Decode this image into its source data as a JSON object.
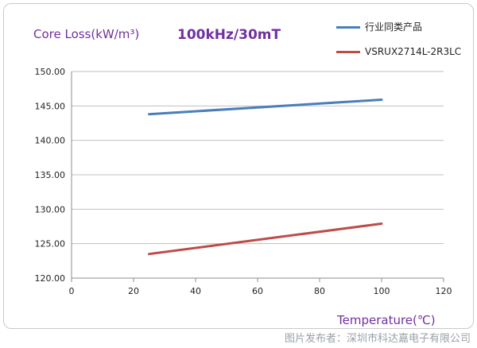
{
  "chart_data": {
    "type": "line",
    "title": "100kHz/30mT",
    "ylabel": "Core Loss(kW/m³)",
    "xlabel": "Temperature(℃)",
    "xlim": [
      0,
      120
    ],
    "ylim": [
      120,
      150
    ],
    "x_ticks": [
      "0",
      "20",
      "40",
      "60",
      "80",
      "100",
      "120"
    ],
    "y_ticks": [
      "120.00",
      "125.00",
      "130.00",
      "135.00",
      "140.00",
      "145.00",
      "150.00"
    ],
    "grid": "horizontal",
    "legend": "top-right",
    "series": [
      {
        "name": "行业同类产品",
        "color": "#4a7ebb",
        "x": [
          25,
          100
        ],
        "y": [
          143.8,
          145.9
        ]
      },
      {
        "name": "VSRUX2714L-2R3LC",
        "color": "#be4b48",
        "x": [
          25,
          100
        ],
        "y": [
          123.5,
          127.9
        ]
      }
    ]
  },
  "credit": "图片发布者：深圳市科达嘉电子有限公司"
}
